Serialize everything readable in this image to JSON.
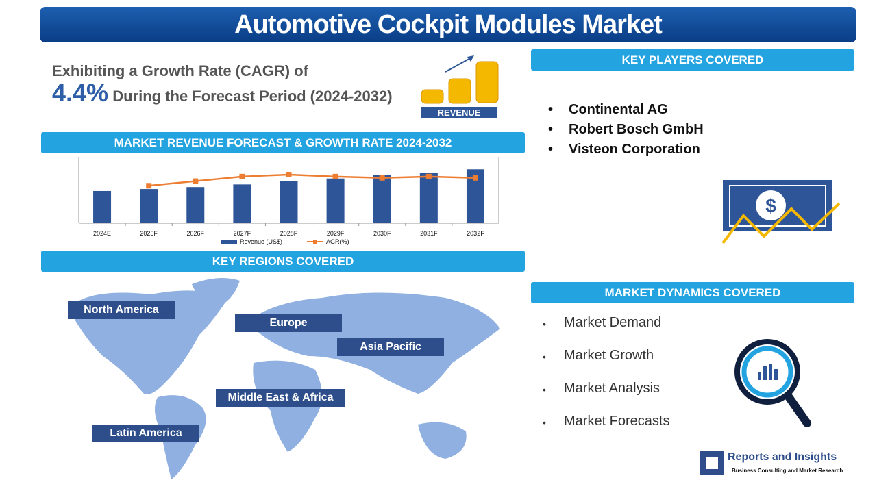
{
  "header": {
    "title": "Automotive Cockpit Modules Market"
  },
  "cagr": {
    "line1": "Exhibiting a Growth Rate (CAGR) of",
    "value": "4.4%",
    "line2": "During the Forecast Period (2024-2032)"
  },
  "revenue_icon": {
    "label": "REVENUE"
  },
  "chart_section": {
    "heading": "MARKET REVENUE FORECAST & GROWTH RATE 2024-2032"
  },
  "chart_data": {
    "type": "bar",
    "categories": [
      "2024E",
      "2025F",
      "2026F",
      "2027F",
      "2028F",
      "2029F",
      "2030F",
      "2031F",
      "2032F"
    ],
    "series": [
      {
        "name": "Revenue (US$)",
        "color": "#2e5597",
        "values": [
          49,
          52,
          55,
          59,
          64,
          68,
          73,
          77,
          82
        ]
      },
      {
        "name": "AGR(%)",
        "color": "#ed7d31",
        "type": "line",
        "axis": "y2",
        "values": [
          null,
          57,
          64,
          71,
          74,
          71,
          69,
          71,
          69
        ]
      }
    ],
    "ylim": [
      0,
      100
    ],
    "y2lim": [
      0,
      100
    ]
  },
  "regions": {
    "heading": "KEY REGIONS COVERED",
    "items": [
      "North America",
      "Europe",
      "Asia Pacific",
      "Middle East & Africa",
      "Latin America"
    ]
  },
  "key_players": {
    "heading": "KEY PLAYERS COVERED",
    "items": [
      "Continental AG",
      "Robert Bosch GmbH",
      "Visteon Corporation"
    ]
  },
  "dynamics": {
    "heading": "MARKET DYNAMICS COVERED",
    "items": [
      "Market Demand",
      "Market Growth",
      "Market Analysis",
      "Market Forecasts"
    ]
  },
  "brand": {
    "name": "Reports and Insights",
    "tagline": "Business Consulting and Market Research"
  }
}
